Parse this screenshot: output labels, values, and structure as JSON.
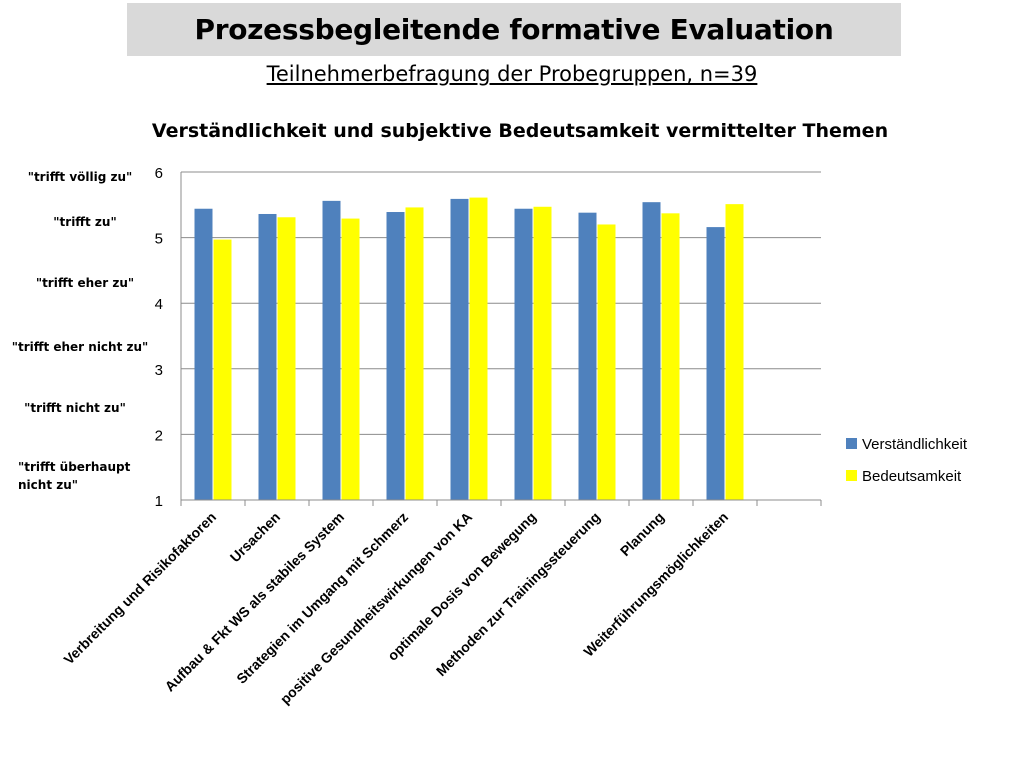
{
  "header": {
    "title": "Prozessbegleitende formative Evaluation",
    "subtitle": "Teilnehmerbefragung der Probegruppen, n=39"
  },
  "scale_labels": [
    {
      "value": 6,
      "lines": [
        "\"trifft völlig zu\""
      ]
    },
    {
      "value": 5,
      "lines": [
        "\"trifft zu\""
      ]
    },
    {
      "value": 4,
      "lines": [
        "\"trifft eher zu\""
      ]
    },
    {
      "value": 3,
      "lines": [
        "\"trifft eher nicht zu\""
      ]
    },
    {
      "value": 2,
      "lines": [
        "\"trifft nicht zu\""
      ]
    },
    {
      "value": 1,
      "lines": [
        "\"trifft überhaupt",
        "nicht zu\""
      ]
    }
  ],
  "chart_data": {
    "type": "bar",
    "title": "Verständlichkeit und subjektive Bedeutsamkeit vermittelter Themen",
    "xlabel": "",
    "ylabel": "",
    "ylim": [
      1,
      6
    ],
    "yticks": [
      1,
      2,
      3,
      4,
      5,
      6
    ],
    "grid": true,
    "legend_position": "right",
    "categories": [
      "Verbreitung und Risikofaktoren",
      "Ursachen",
      "Aufbau & Fkt WS als stabiles System",
      "Strategien im Umgang mit Schmerz",
      "positive Gesundheitswirkungen von KA",
      "optimale Dosis von Bewegung",
      "Methoden zur Trainingssteuerung",
      "Planung",
      "Weiterführungsmöglichkeiten",
      ""
    ],
    "series": [
      {
        "name": "Verständlichkeit",
        "color": "#4f81bd",
        "values": [
          5.44,
          5.36,
          5.56,
          5.39,
          5.59,
          5.44,
          5.38,
          5.54,
          5.16,
          null
        ]
      },
      {
        "name": "Bedeutsamkeit",
        "color": "#ffff00",
        "values": [
          4.97,
          5.31,
          5.29,
          5.46,
          5.61,
          5.47,
          5.2,
          5.37,
          5.51,
          null
        ]
      }
    ]
  }
}
